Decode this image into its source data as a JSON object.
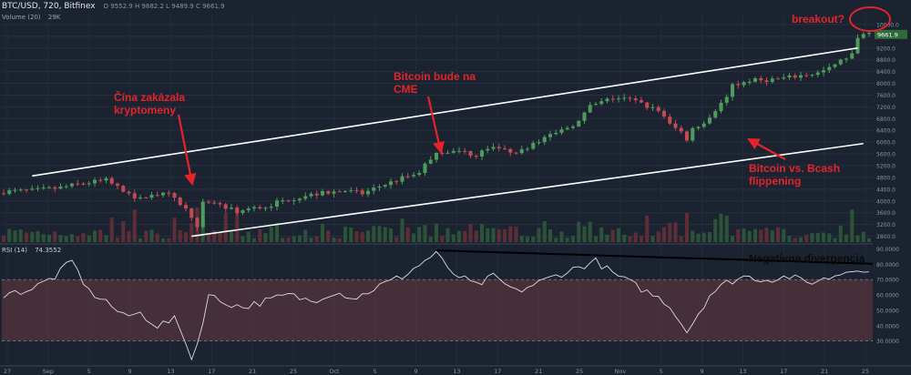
{
  "header": {
    "symbol": "BTC/USD, 720, Bitfinex",
    "ohlc": "O 9552.9  H 9882.2  L 9489.9  C 9661.9",
    "volume_label": "Volume (20)",
    "volume_value": "29K",
    "rsi_label": "RSI (14)",
    "rsi_value": "74.3552"
  },
  "annotations": {
    "china": [
      "Čína zakázala",
      "kryptomeny"
    ],
    "cme": [
      "Bitcoin bude na",
      "CME"
    ],
    "bcash": [
      "Bitcoin vs. Bcash",
      "flippening"
    ],
    "breakout": "breakout?",
    "divergence": "Negatívna divergencia"
  },
  "colors": {
    "background": "#1b2331",
    "up": "#4e9a5a",
    "down": "#c44a52",
    "annotation": "#e3242b",
    "channel": "#ffffff",
    "rsi_band": "#6a3a40"
  },
  "chart_data": {
    "type": "candlestick",
    "ylim": [
      2600,
      10400
    ],
    "y_ticks": [
      2800,
      3200,
      3600,
      4000,
      4400,
      4800,
      5200,
      5600,
      6000,
      6400,
      6800,
      7200,
      7600,
      8000,
      8400,
      8800,
      9200,
      9600,
      10000
    ],
    "y_tick_labels": [
      "2800.0",
      "3200.0",
      "3600.0",
      "4000.0",
      "4400.0",
      "4800.0",
      "5200.0",
      "5600.0",
      "6000.0",
      "6400.0",
      "6800.0",
      "7200.0",
      "7600.0",
      "8000.0",
      "8400.0",
      "8800.0",
      "9200.0",
      "9600.0",
      "10000.0"
    ],
    "last_price": "9661.9",
    "x_labels": [
      "27",
      "Sep",
      "5",
      "9",
      "13",
      "17",
      "21",
      "25",
      "Oct",
      "5",
      "9",
      "13",
      "17",
      "21",
      "25",
      "Nov",
      "5",
      "9",
      "13",
      "17",
      "21",
      "25"
    ],
    "close_path": [
      [
        0,
        4320
      ],
      [
        5,
        4350
      ],
      [
        10,
        4450
      ],
      [
        14,
        4600
      ],
      [
        18,
        4700
      ],
      [
        21,
        4330
      ],
      [
        24,
        4050
      ],
      [
        26,
        4250
      ],
      [
        29,
        4200
      ],
      [
        31,
        3900
      ],
      [
        33,
        3500
      ],
      [
        34,
        3050
      ],
      [
        35,
        3900
      ],
      [
        38,
        3850
      ],
      [
        41,
        3650
      ],
      [
        44,
        3750
      ],
      [
        46,
        3800
      ],
      [
        48,
        3950
      ],
      [
        51,
        4100
      ],
      [
        54,
        4200
      ],
      [
        57,
        4300
      ],
      [
        60,
        4350
      ],
      [
        63,
        4250
      ],
      [
        66,
        4500
      ],
      [
        69,
        4700
      ],
      [
        71,
        4850
      ],
      [
        73,
        5000
      ],
      [
        76,
        5650
      ],
      [
        78,
        5700
      ],
      [
        81,
        5650
      ],
      [
        83,
        5550
      ],
      [
        86,
        5900
      ],
      [
        88,
        5700
      ],
      [
        91,
        5700
      ],
      [
        93,
        6000
      ],
      [
        96,
        6200
      ],
      [
        98,
        6400
      ],
      [
        101,
        6700
      ],
      [
        103,
        7200
      ],
      [
        105,
        7350
      ],
      [
        107,
        7500
      ],
      [
        110,
        7450
      ],
      [
        112,
        7300
      ],
      [
        115,
        7050
      ],
      [
        117,
        6600
      ],
      [
        119,
        6350
      ],
      [
        120,
        6100
      ],
      [
        121,
        6450
      ],
      [
        123,
        6700
      ],
      [
        126,
        7300
      ],
      [
        128,
        7900
      ],
      [
        131,
        8100
      ],
      [
        133,
        8100
      ],
      [
        136,
        8150
      ],
      [
        138,
        8200
      ],
      [
        141,
        8300
      ],
      [
        143,
        8350
      ],
      [
        145,
        8500
      ],
      [
        147,
        8750
      ],
      [
        149,
        9000
      ],
      [
        150,
        9500
      ],
      [
        151,
        9600
      ],
      [
        152,
        9661.9
      ]
    ],
    "channel_upper": {
      "from": [
        5,
        4850
      ],
      "to": [
        150,
        9200
      ]
    },
    "channel_lower": {
      "from": [
        33,
        2800
      ],
      "to": [
        151,
        5950
      ]
    },
    "rsi": {
      "ylim": [
        15,
        92
      ],
      "band": [
        30,
        70
      ],
      "ticks": [
        30,
        40,
        50,
        60,
        70,
        80,
        90
      ],
      "tick_labels": [
        "30.0000",
        "40.0000",
        "50.0000",
        "60.0000",
        "70.0000",
        "80.0000",
        "90.0000"
      ],
      "path": [
        [
          0,
          60
        ],
        [
          5,
          64
        ],
        [
          9,
          72
        ],
        [
          12,
          82
        ],
        [
          15,
          62
        ],
        [
          18,
          56
        ],
        [
          21,
          46
        ],
        [
          24,
          48
        ],
        [
          27,
          40
        ],
        [
          30,
          44
        ],
        [
          32,
          30
        ],
        [
          33,
          18
        ],
        [
          34,
          28
        ],
        [
          36,
          60
        ],
        [
          38,
          56
        ],
        [
          42,
          52
        ],
        [
          46,
          56
        ],
        [
          50,
          60
        ],
        [
          54,
          56
        ],
        [
          58,
          62
        ],
        [
          62,
          58
        ],
        [
          66,
          66
        ],
        [
          70,
          72
        ],
        [
          74,
          82
        ],
        [
          76,
          88
        ],
        [
          78,
          76
        ],
        [
          80,
          72
        ],
        [
          83,
          66
        ],
        [
          86,
          72
        ],
        [
          90,
          62
        ],
        [
          94,
          68
        ],
        [
          98,
          74
        ],
        [
          101,
          78
        ],
        [
          104,
          82
        ],
        [
          107,
          74
        ],
        [
          110,
          68
        ],
        [
          113,
          62
        ],
        [
          116,
          56
        ],
        [
          118,
          48
        ],
        [
          120,
          36
        ],
        [
          122,
          48
        ],
        [
          124,
          60
        ],
        [
          127,
          68
        ],
        [
          130,
          72
        ],
        [
          134,
          70
        ],
        [
          138,
          72
        ],
        [
          141,
          68
        ],
        [
          144,
          70
        ],
        [
          147,
          74
        ],
        [
          150,
          78
        ],
        [
          152,
          74.36
        ]
      ],
      "divergence_line": {
        "from": [
          76,
          89
        ],
        "to": [
          152,
          80
        ]
      }
    }
  }
}
